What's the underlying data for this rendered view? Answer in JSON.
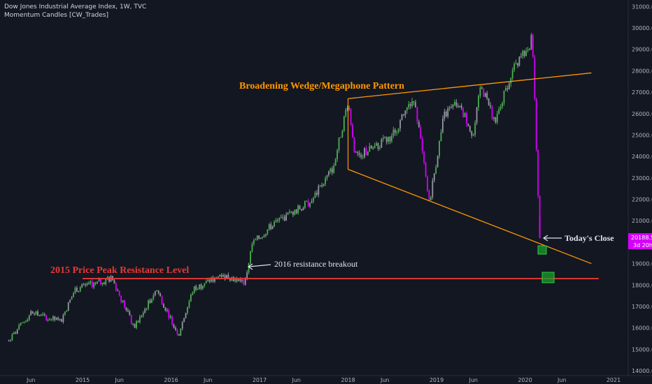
{
  "header": {
    "title": "Dow Jones Industrial Average Index, 1W, TVC",
    "indicator": "Momentum Candles [CW_Trades]"
  },
  "price_badge": {
    "price": "20188.5",
    "timer": "3d 20h"
  },
  "colors": {
    "background": "#131722",
    "bull": "#4caf50",
    "bear": "#9598a1",
    "strong_bear": "#d500f9",
    "wedge": "#ff9800",
    "resistance": "#e53935",
    "annotation_white": "#e0e3eb",
    "target_box": "#1b9e2d"
  },
  "annotations": {
    "wedge_label": "Broadening Wedge/Megaphone Pattern",
    "resistance_label": "2015 Price Peak Resistance Level",
    "breakout_label": "2016 resistance breakout",
    "close_label": "Today's Close"
  },
  "chart_data": {
    "type": "candlestick",
    "title": "Dow Jones Industrial Average Index, 1W, TVC",
    "ylim": [
      14000,
      31000
    ],
    "y_ticks": [
      "31000.0",
      "30000.0",
      "29000.0",
      "28000.0",
      "27000.0",
      "26000.0",
      "25000.0",
      "24000.0",
      "23000.0",
      "22000.0",
      "21000.0",
      "20000.0",
      "19000.0",
      "18000.0",
      "17000.0",
      "16000.0",
      "15000.0",
      "14000.0"
    ],
    "x_ticks": [
      "Jun",
      "2015",
      "Jun",
      "2016",
      "Jun",
      "2017",
      "Jun",
      "2018",
      "Jun",
      "2019",
      "Jun",
      "2020",
      "Jun",
      "2021"
    ],
    "path_points": [
      [
        "2014-03",
        15400
      ],
      [
        "2014-06",
        16700
      ],
      [
        "2014-10",
        16300
      ],
      [
        "2014-12",
        17800
      ],
      [
        "2015-05",
        18300
      ],
      [
        "2015-08",
        16000
      ],
      [
        "2015-11",
        17800
      ],
      [
        "2016-02",
        15700
      ],
      [
        "2016-04",
        17800
      ],
      [
        "2016-08",
        18500
      ],
      [
        "2016-11",
        18100
      ],
      [
        "2016-12",
        19900
      ],
      [
        "2017-03",
        20900
      ],
      [
        "2017-08",
        21900
      ],
      [
        "2017-11",
        23500
      ],
      [
        "2018-01",
        26600
      ],
      [
        "2018-02",
        24000
      ],
      [
        "2018-05",
        24500
      ],
      [
        "2018-07",
        25000
      ],
      [
        "2018-10",
        26800
      ],
      [
        "2018-12",
        21800
      ],
      [
        "2019-02",
        25900
      ],
      [
        "2019-04",
        26500
      ],
      [
        "2019-06",
        25000
      ],
      [
        "2019-07",
        27300
      ],
      [
        "2019-09",
        25600
      ],
      [
        "2019-11",
        27800
      ],
      [
        "2020-02",
        29500
      ],
      [
        "2020-03",
        20188.5
      ]
    ],
    "last_price": 20188.5,
    "lines": [
      {
        "name": "wedge-upper",
        "from": [
          "2018-01",
          26700
        ],
        "to": [
          "2020-10",
          27900
        ]
      },
      {
        "name": "wedge-lower",
        "from": [
          "2018-01",
          23400
        ],
        "to": [
          "2020-10",
          19000
        ]
      },
      {
        "name": "resistance",
        "from": [
          "2015-01",
          18300
        ],
        "to": [
          "2020-11",
          18300
        ]
      }
    ],
    "target_zones": [
      {
        "name": "target-box-upper",
        "date": "2020-04",
        "price": 19700
      },
      {
        "name": "target-box-lower",
        "date": "2020-05",
        "price": 18300
      }
    ]
  }
}
